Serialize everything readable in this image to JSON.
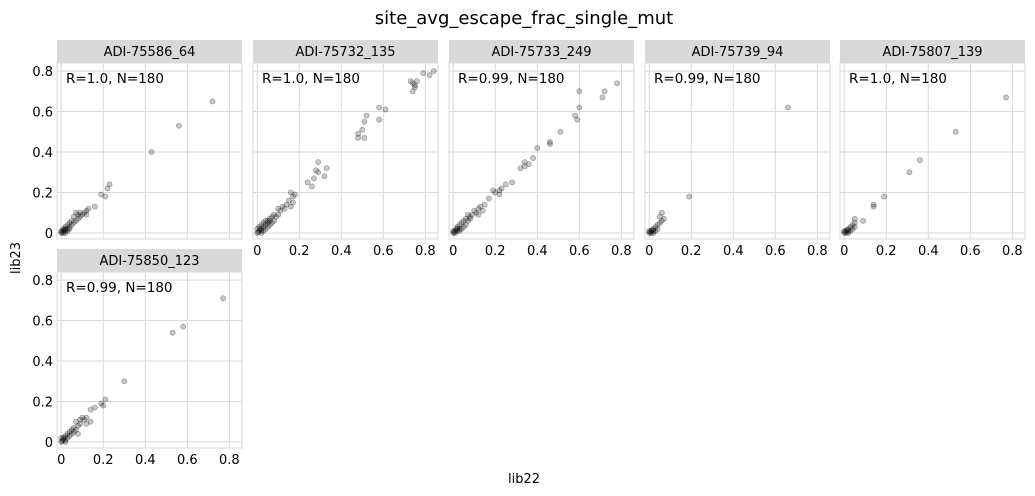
{
  "chart_data": {
    "type": "scatter",
    "title": "site_avg_escape_frac_single_mut",
    "xlabel": "lib22",
    "ylabel": "lib23",
    "xlim": [
      -0.02,
      0.86
    ],
    "ylim": [
      -0.03,
      0.84
    ],
    "xticks": [
      0,
      0.2,
      0.4,
      0.6,
      0.8
    ],
    "yticks": [
      0,
      0.2,
      0.4,
      0.6,
      0.8
    ],
    "tick_labels": [
      "0",
      "0.2",
      "0.4",
      "0.6",
      "0.8"
    ],
    "grid": true,
    "marker_color": "#000000",
    "marker_alpha": 0.22,
    "strip_color": "#d9d9d9",
    "grid_color": "#d9d9d9",
    "panels": [
      {
        "name": "ADI-75586_64",
        "annotation": "R=1.0, N=180",
        "points": [
          [
            0.72,
            0.65
          ],
          [
            0.56,
            0.53
          ],
          [
            0.43,
            0.4
          ],
          [
            0.23,
            0.24
          ],
          [
            0.22,
            0.22
          ],
          [
            0.21,
            0.18
          ],
          [
            0.19,
            0.19
          ],
          [
            0.16,
            0.13
          ],
          [
            0.13,
            0.12
          ],
          [
            0.12,
            0.11
          ],
          [
            0.12,
            0.09
          ],
          [
            0.11,
            0.1
          ],
          [
            0.1,
            0.09
          ],
          [
            0.09,
            0.08
          ],
          [
            0.09,
            0.1
          ],
          [
            0.08,
            0.07
          ],
          [
            0.08,
            0.09
          ],
          [
            0.07,
            0.1
          ],
          [
            0.07,
            0.06
          ],
          [
            0.06,
            0.08
          ],
          [
            0.06,
            0.05
          ],
          [
            0.05,
            0.06
          ],
          [
            0.05,
            0.04
          ],
          [
            0.04,
            0.05
          ],
          [
            0.04,
            0.02
          ],
          [
            0.04,
            0.03
          ],
          [
            0.03,
            0.04
          ],
          [
            0.03,
            0.02
          ],
          [
            0.03,
            0.01
          ],
          [
            0.02,
            0.03
          ],
          [
            0.02,
            0.02
          ],
          [
            0.02,
            0.01
          ],
          [
            0.015,
            0.015
          ],
          [
            0.01,
            0.01
          ],
          [
            0.01,
            0.02
          ],
          [
            0.01,
            0.0
          ],
          [
            0.005,
            0.005
          ],
          [
            0.0,
            0.0
          ],
          [
            0.0,
            0.01
          ],
          [
            0.02,
            0.0
          ]
        ]
      },
      {
        "name": "ADI-75732_135",
        "annotation": "R=1.0, N=180",
        "points": [
          [
            0.84,
            0.8
          ],
          [
            0.82,
            0.78
          ],
          [
            0.79,
            0.79
          ],
          [
            0.76,
            0.75
          ],
          [
            0.75,
            0.73
          ],
          [
            0.74,
            0.74
          ],
          [
            0.74,
            0.7
          ],
          [
            0.75,
            0.72
          ],
          [
            0.73,
            0.75
          ],
          [
            0.61,
            0.61
          ],
          [
            0.58,
            0.62
          ],
          [
            0.58,
            0.56
          ],
          [
            0.52,
            0.58
          ],
          [
            0.51,
            0.55
          ],
          [
            0.5,
            0.51
          ],
          [
            0.51,
            0.47
          ],
          [
            0.48,
            0.49
          ],
          [
            0.48,
            0.47
          ],
          [
            0.33,
            0.32
          ],
          [
            0.32,
            0.28
          ],
          [
            0.29,
            0.35
          ],
          [
            0.29,
            0.3
          ],
          [
            0.28,
            0.31
          ],
          [
            0.27,
            0.27
          ],
          [
            0.26,
            0.23
          ],
          [
            0.24,
            0.25
          ],
          [
            0.18,
            0.19
          ],
          [
            0.17,
            0.18
          ],
          [
            0.17,
            0.15
          ],
          [
            0.16,
            0.13
          ],
          [
            0.16,
            0.2
          ],
          [
            0.15,
            0.16
          ],
          [
            0.14,
            0.14
          ],
          [
            0.13,
            0.12
          ],
          [
            0.12,
            0.13
          ],
          [
            0.11,
            0.11
          ],
          [
            0.1,
            0.09
          ],
          [
            0.1,
            0.12
          ],
          [
            0.09,
            0.08
          ],
          [
            0.08,
            0.09
          ],
          [
            0.08,
            0.06
          ],
          [
            0.07,
            0.08
          ],
          [
            0.07,
            0.05
          ],
          [
            0.06,
            0.07
          ],
          [
            0.06,
            0.04
          ],
          [
            0.05,
            0.06
          ],
          [
            0.05,
            0.03
          ],
          [
            0.05,
            0.05
          ],
          [
            0.04,
            0.04
          ],
          [
            0.04,
            0.02
          ],
          [
            0.04,
            0.06
          ],
          [
            0.03,
            0.03
          ],
          [
            0.03,
            0.01
          ],
          [
            0.03,
            0.05
          ],
          [
            0.02,
            0.02
          ],
          [
            0.02,
            0.04
          ],
          [
            0.02,
            0.01
          ],
          [
            0.015,
            0.02
          ],
          [
            0.01,
            0.01
          ],
          [
            0.01,
            0.03
          ],
          [
            0.005,
            0.005
          ],
          [
            0.0,
            0.0
          ],
          [
            0.0,
            0.02
          ],
          [
            0.02,
            0.0
          ],
          [
            0.06,
            0.06
          ]
        ]
      },
      {
        "name": "ADI-75733_249",
        "annotation": "R=0.99, N=180",
        "points": [
          [
            0.78,
            0.74
          ],
          [
            0.72,
            0.7
          ],
          [
            0.71,
            0.67
          ],
          [
            0.6,
            0.7
          ],
          [
            0.6,
            0.62
          ],
          [
            0.59,
            0.56
          ],
          [
            0.58,
            0.58
          ],
          [
            0.51,
            0.5
          ],
          [
            0.46,
            0.45
          ],
          [
            0.46,
            0.44
          ],
          [
            0.4,
            0.42
          ],
          [
            0.38,
            0.37
          ],
          [
            0.36,
            0.34
          ],
          [
            0.34,
            0.35
          ],
          [
            0.34,
            0.33
          ],
          [
            0.32,
            0.32
          ],
          [
            0.28,
            0.25
          ],
          [
            0.25,
            0.24
          ],
          [
            0.23,
            0.22
          ],
          [
            0.22,
            0.21
          ],
          [
            0.22,
            0.19
          ],
          [
            0.2,
            0.2
          ],
          [
            0.19,
            0.21
          ],
          [
            0.17,
            0.17
          ],
          [
            0.15,
            0.14
          ],
          [
            0.14,
            0.11
          ],
          [
            0.13,
            0.13
          ],
          [
            0.12,
            0.12
          ],
          [
            0.12,
            0.09
          ],
          [
            0.11,
            0.1
          ],
          [
            0.1,
            0.11
          ],
          [
            0.09,
            0.09
          ],
          [
            0.08,
            0.07
          ],
          [
            0.08,
            0.08
          ],
          [
            0.07,
            0.06
          ],
          [
            0.07,
            0.09
          ],
          [
            0.06,
            0.07
          ],
          [
            0.06,
            0.04
          ],
          [
            0.05,
            0.06
          ],
          [
            0.05,
            0.03
          ],
          [
            0.04,
            0.05
          ],
          [
            0.04,
            0.02
          ],
          [
            0.03,
            0.04
          ],
          [
            0.03,
            0.02
          ],
          [
            0.03,
            0.01
          ],
          [
            0.02,
            0.03
          ],
          [
            0.02,
            0.01
          ],
          [
            0.015,
            0.02
          ],
          [
            0.01,
            0.01
          ],
          [
            0.01,
            0.0
          ],
          [
            0.005,
            0.005
          ],
          [
            0.0,
            0.0
          ],
          [
            0.0,
            0.01
          ],
          [
            0.02,
            0.02
          ]
        ]
      },
      {
        "name": "ADI-75739_94",
        "annotation": "R=0.99, N=180",
        "points": [
          [
            0.66,
            0.62
          ],
          [
            0.19,
            0.18
          ],
          [
            0.07,
            0.07
          ],
          [
            0.06,
            0.1
          ],
          [
            0.06,
            0.06
          ],
          [
            0.05,
            0.08
          ],
          [
            0.05,
            0.05
          ],
          [
            0.04,
            0.04
          ],
          [
            0.04,
            0.02
          ],
          [
            0.03,
            0.03
          ],
          [
            0.03,
            0.01
          ],
          [
            0.02,
            0.02
          ],
          [
            0.02,
            0.01
          ],
          [
            0.015,
            0.015
          ],
          [
            0.01,
            0.01
          ],
          [
            0.01,
            0.0
          ],
          [
            0.005,
            0.005
          ],
          [
            0.0,
            0.0
          ],
          [
            0.0,
            0.01
          ],
          [
            0.02,
            0.0
          ]
        ]
      },
      {
        "name": "ADI-75807_139",
        "annotation": "R=1.0, N=180",
        "points": [
          [
            0.77,
            0.67
          ],
          [
            0.53,
            0.5
          ],
          [
            0.36,
            0.36
          ],
          [
            0.31,
            0.3
          ],
          [
            0.19,
            0.18
          ],
          [
            0.14,
            0.14
          ],
          [
            0.14,
            0.13
          ],
          [
            0.09,
            0.06
          ],
          [
            0.05,
            0.07
          ],
          [
            0.05,
            0.05
          ],
          [
            0.05,
            0.03
          ],
          [
            0.04,
            0.04
          ],
          [
            0.04,
            0.02
          ],
          [
            0.03,
            0.03
          ],
          [
            0.03,
            0.01
          ],
          [
            0.02,
            0.02
          ],
          [
            0.02,
            0.01
          ],
          [
            0.015,
            0.015
          ],
          [
            0.01,
            0.01
          ],
          [
            0.01,
            0.0
          ],
          [
            0.005,
            0.005
          ],
          [
            0.0,
            0.0
          ],
          [
            0.0,
            0.01
          ],
          [
            0.02,
            0.0
          ]
        ]
      },
      {
        "name": "ADI-75850_123",
        "annotation": "R=0.99, N=180",
        "points": [
          [
            0.77,
            0.71
          ],
          [
            0.58,
            0.57
          ],
          [
            0.53,
            0.54
          ],
          [
            0.3,
            0.3
          ],
          [
            0.21,
            0.21
          ],
          [
            0.2,
            0.18
          ],
          [
            0.19,
            0.19
          ],
          [
            0.16,
            0.17
          ],
          [
            0.14,
            0.16
          ],
          [
            0.14,
            0.1
          ],
          [
            0.12,
            0.09
          ],
          [
            0.12,
            0.12
          ],
          [
            0.11,
            0.11
          ],
          [
            0.1,
            0.12
          ],
          [
            0.09,
            0.11
          ],
          [
            0.09,
            0.09
          ],
          [
            0.08,
            0.04
          ],
          [
            0.08,
            0.08
          ],
          [
            0.07,
            0.1
          ],
          [
            0.07,
            0.06
          ],
          [
            0.06,
            0.07
          ],
          [
            0.06,
            0.05
          ],
          [
            0.05,
            0.06
          ],
          [
            0.05,
            0.04
          ],
          [
            0.04,
            0.05
          ],
          [
            0.04,
            0.03
          ],
          [
            0.03,
            0.04
          ],
          [
            0.03,
            0.02
          ],
          [
            0.02,
            0.03
          ],
          [
            0.02,
            0.01
          ],
          [
            0.015,
            0.02
          ],
          [
            0.01,
            0.01
          ],
          [
            0.01,
            0.02
          ],
          [
            0.005,
            0.005
          ],
          [
            0.0,
            0.0
          ],
          [
            0.0,
            0.02
          ],
          [
            0.02,
            0.0
          ]
        ]
      }
    ]
  }
}
